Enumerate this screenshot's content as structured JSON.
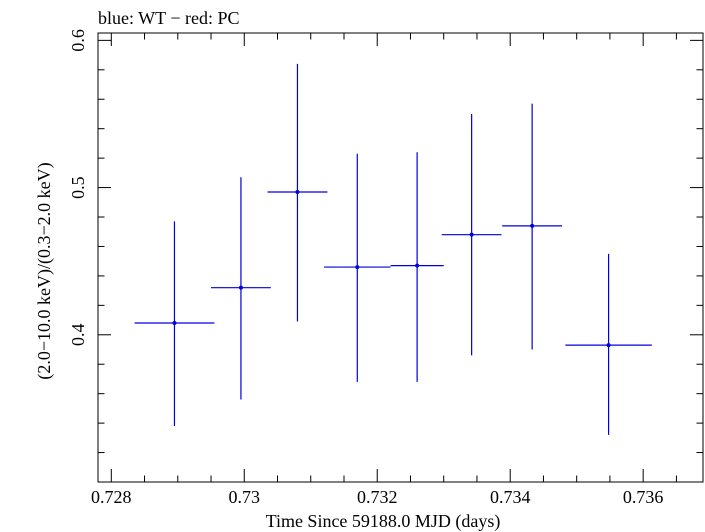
{
  "chart_data": {
    "type": "scatter",
    "title": "blue: WT − red: PC",
    "xlabel": "Time Since 59188.0 MJD (days)",
    "ylabel": "(2.0−10.0 keV)/(0.3−2.0 keV)",
    "xlim": [
      0.7278,
      0.7369
    ],
    "ylim": [
      0.3,
      0.605
    ],
    "x_ticks": [
      {
        "value": 0.728,
        "label": "0.728"
      },
      {
        "value": 0.73,
        "label": "0.73"
      },
      {
        "value": 0.732,
        "label": "0.732"
      },
      {
        "value": 0.734,
        "label": "0.734"
      },
      {
        "value": 0.736,
        "label": "0.736"
      }
    ],
    "x_minor_step": 0.0005,
    "y_ticks": [
      {
        "value": 0.4,
        "label": "0.4"
      },
      {
        "value": 0.5,
        "label": "0.5"
      },
      {
        "value": 0.6,
        "label": "0.6"
      }
    ],
    "y_minor_step": 0.02,
    "series": [
      {
        "name": "WT",
        "color": "#0000dd",
        "points": [
          {
            "x": 0.72895,
            "xerr": 0.0006,
            "y": 0.408,
            "ylo": 0.338,
            "yhi": 0.477
          },
          {
            "x": 0.72995,
            "xerr": 0.00045,
            "y": 0.432,
            "ylo": 0.356,
            "yhi": 0.507
          },
          {
            "x": 0.7308,
            "xerr": 0.00045,
            "y": 0.497,
            "ylo": 0.409,
            "yhi": 0.584
          },
          {
            "x": 0.7317,
            "xerr": 0.0005,
            "y": 0.446,
            "ylo": 0.368,
            "yhi": 0.523
          },
          {
            "x": 0.7326,
            "xerr": 0.0004,
            "y": 0.447,
            "ylo": 0.368,
            "yhi": 0.524
          },
          {
            "x": 0.73342,
            "xerr": 0.00045,
            "y": 0.468,
            "ylo": 0.386,
            "yhi": 0.55
          },
          {
            "x": 0.73433,
            "xerr": 0.00045,
            "y": 0.474,
            "ylo": 0.39,
            "yhi": 0.557
          },
          {
            "x": 0.73548,
            "xerr": 0.00065,
            "y": 0.393,
            "ylo": 0.332,
            "yhi": 0.455
          }
        ]
      }
    ]
  }
}
